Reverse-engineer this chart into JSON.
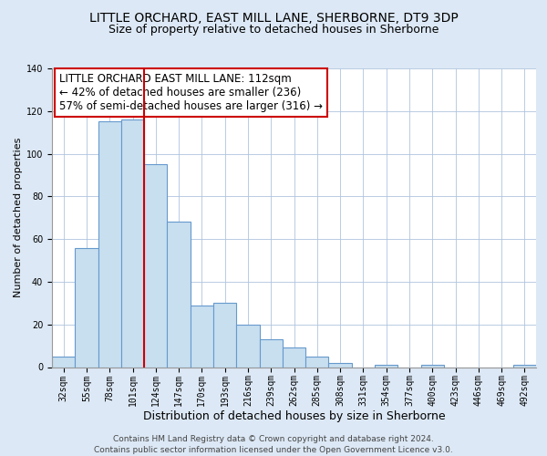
{
  "title": "LITTLE ORCHARD, EAST MILL LANE, SHERBORNE, DT9 3DP",
  "subtitle": "Size of property relative to detached houses in Sherborne",
  "xlabel": "Distribution of detached houses by size in Sherborne",
  "ylabel": "Number of detached properties",
  "categories": [
    "32sqm",
    "55sqm",
    "78sqm",
    "101sqm",
    "124sqm",
    "147sqm",
    "170sqm",
    "193sqm",
    "216sqm",
    "239sqm",
    "262sqm",
    "285sqm",
    "308sqm",
    "331sqm",
    "354sqm",
    "377sqm",
    "400sqm",
    "423sqm",
    "446sqm",
    "469sqm",
    "492sqm"
  ],
  "values": [
    5,
    56,
    115,
    116,
    95,
    68,
    29,
    30,
    20,
    13,
    9,
    5,
    2,
    0,
    1,
    0,
    1,
    0,
    0,
    0,
    1
  ],
  "bar_color": "#c8dff0",
  "bar_edge_color": "#6699cc",
  "vline_x": 3.5,
  "vline_color": "#cc0000",
  "annotation_text": "LITTLE ORCHARD EAST MILL LANE: 112sqm\n← 42% of detached houses are smaller (236)\n57% of semi-detached houses are larger (316) →",
  "annotation_box_color": "white",
  "annotation_box_edge_color": "#cc0000",
  "ylim": [
    0,
    140
  ],
  "yticks": [
    0,
    20,
    40,
    60,
    80,
    100,
    120,
    140
  ],
  "footer": "Contains HM Land Registry data © Crown copyright and database right 2024.\nContains public sector information licensed under the Open Government Licence v3.0.",
  "bg_color": "#dce8f5",
  "plot_bg_color": "white",
  "title_fontsize": 10,
  "subtitle_fontsize": 9,
  "xlabel_fontsize": 9,
  "ylabel_fontsize": 8,
  "tick_fontsize": 7,
  "annotation_fontsize": 8.5,
  "footer_fontsize": 6.5
}
